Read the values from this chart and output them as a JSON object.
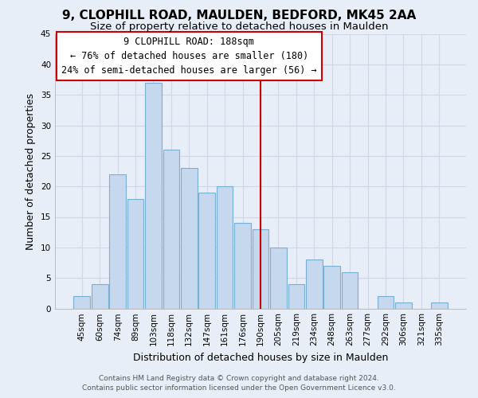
{
  "title": "9, CLOPHILL ROAD, MAULDEN, BEDFORD, MK45 2AA",
  "subtitle": "Size of property relative to detached houses in Maulden",
  "xlabel": "Distribution of detached houses by size in Maulden",
  "ylabel": "Number of detached properties",
  "categories": [
    "45sqm",
    "60sqm",
    "74sqm",
    "89sqm",
    "103sqm",
    "118sqm",
    "132sqm",
    "147sqm",
    "161sqm",
    "176sqm",
    "190sqm",
    "205sqm",
    "219sqm",
    "234sqm",
    "248sqm",
    "263sqm",
    "277sqm",
    "292sqm",
    "306sqm",
    "321sqm",
    "335sqm"
  ],
  "values": [
    2,
    4,
    22,
    18,
    37,
    26,
    23,
    19,
    20,
    14,
    13,
    10,
    4,
    8,
    7,
    6,
    0,
    2,
    1,
    0,
    1
  ],
  "bar_color": "#c5d8ee",
  "bar_edge_color": "#7aafd4",
  "vline_x_index": 10,
  "vline_color": "#cc0000",
  "ylim": [
    0,
    45
  ],
  "yticks": [
    0,
    5,
    10,
    15,
    20,
    25,
    30,
    35,
    40,
    45
  ],
  "annotation_title": "9 CLOPHILL ROAD: 188sqm",
  "annotation_line1": "← 76% of detached houses are smaller (180)",
  "annotation_line2": "24% of semi-detached houses are larger (56) →",
  "footer_line1": "Contains HM Land Registry data © Crown copyright and database right 2024.",
  "footer_line2": "Contains public sector information licensed under the Open Government Licence v3.0.",
  "background_color": "#e8eef8",
  "grid_color": "#d0d8e8",
  "title_fontsize": 11,
  "subtitle_fontsize": 9.5,
  "axis_label_fontsize": 9,
  "tick_fontsize": 7.5,
  "footer_fontsize": 6.5,
  "ann_fontsize": 8.5
}
